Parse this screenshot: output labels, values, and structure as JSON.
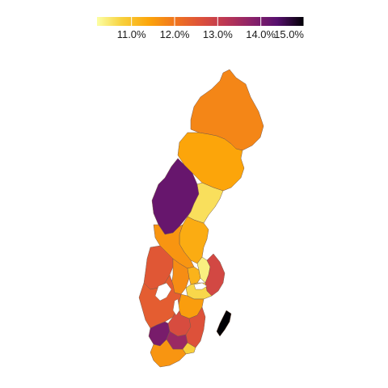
{
  "map": {
    "type": "choropleth",
    "country": "Sweden",
    "legend": {
      "position": "top",
      "palette": "inferno",
      "min": 10.2,
      "max": 15.0,
      "ticks": [
        {
          "value": 11.0,
          "label": "11.0%"
        },
        {
          "value": 12.0,
          "label": "12.0%"
        },
        {
          "value": 13.0,
          "label": "13.0%"
        },
        {
          "value": 14.0,
          "label": "14.0%"
        },
        {
          "value": 15.0,
          "label": "15.0%"
        }
      ]
    },
    "regions": [
      {
        "id": "norrbotten",
        "value": 11.8
      },
      {
        "id": "vasterbotten",
        "value": 11.4
      },
      {
        "id": "jamtland",
        "value": 14.2
      },
      {
        "id": "vasternorrland",
        "value": 10.6
      },
      {
        "id": "gavleborg",
        "value": 11.3
      },
      {
        "id": "dalarna",
        "value": 11.6
      },
      {
        "id": "varmland",
        "value": 12.5
      },
      {
        "id": "orebro",
        "value": 11.7
      },
      {
        "id": "vastmanland",
        "value": 11.2
      },
      {
        "id": "uppsala",
        "value": 10.4
      },
      {
        "id": "stockholm",
        "value": 12.8
      },
      {
        "id": "sodermanland",
        "value": 10.7
      },
      {
        "id": "ostergotland",
        "value": 11.5
      },
      {
        "id": "vastra-gotaland",
        "value": 12.4
      },
      {
        "id": "jonkoping",
        "value": 12.7
      },
      {
        "id": "halland",
        "value": 14.0
      },
      {
        "id": "kronoberg",
        "value": 13.6
      },
      {
        "id": "kalmar",
        "value": 12.6
      },
      {
        "id": "blekinge",
        "value": 10.8
      },
      {
        "id": "skane",
        "value": 11.6
      },
      {
        "id": "gotland",
        "value": 15.0
      }
    ]
  }
}
